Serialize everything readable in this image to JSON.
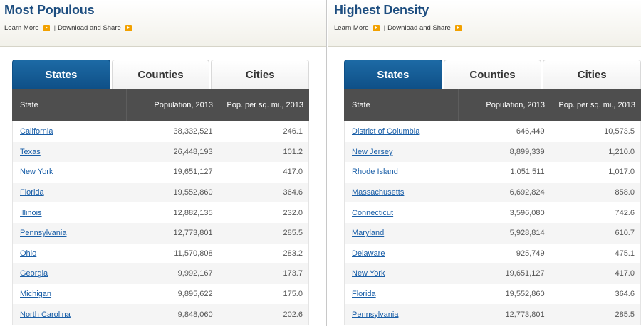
{
  "left": {
    "title": "Most Populous",
    "learn_more": "Learn More",
    "download_share": "Download and Share",
    "separator": "|",
    "tabs": [
      "States",
      "Counties",
      "Cities"
    ],
    "headers": [
      "State",
      "Population, 2013",
      "Pop. per sq. mi., 2013"
    ],
    "rows": [
      [
        "California",
        "38,332,521",
        "246.1"
      ],
      [
        "Texas",
        "26,448,193",
        "101.2"
      ],
      [
        "New York",
        "19,651,127",
        "417.0"
      ],
      [
        "Florida",
        "19,552,860",
        "364.6"
      ],
      [
        "Illinois",
        "12,882,135",
        "232.0"
      ],
      [
        "Pennsylvania",
        "12,773,801",
        "285.5"
      ],
      [
        "Ohio",
        "11,570,808",
        "283.2"
      ],
      [
        "Georgia",
        "9,992,167",
        "173.7"
      ],
      [
        "Michigan",
        "9,895,622",
        "175.0"
      ],
      [
        "North Carolina",
        "9,848,060",
        "202.6"
      ]
    ]
  },
  "right": {
    "title": "Highest Density",
    "learn_more": "Learn More",
    "download_share": "Download and Share",
    "separator": "|",
    "tabs": [
      "States",
      "Counties",
      "Cities"
    ],
    "headers": [
      "State",
      "Population, 2013",
      "Pop. per sq. mi., 2013"
    ],
    "rows": [
      [
        "District of Columbia",
        "646,449",
        "10,573.5"
      ],
      [
        "New Jersey",
        "8,899,339",
        "1,210.0"
      ],
      [
        "Rhode Island",
        "1,051,511",
        "1,017.0"
      ],
      [
        "Massachusetts",
        "6,692,824",
        "858.0"
      ],
      [
        "Connecticut",
        "3,596,080",
        "742.6"
      ],
      [
        "Maryland",
        "5,928,814",
        "610.7"
      ],
      [
        "Delaware",
        "925,749",
        "475.1"
      ],
      [
        "New York",
        "19,651,127",
        "417.0"
      ],
      [
        "Florida",
        "19,552,860",
        "364.6"
      ],
      [
        "Pennsylvania",
        "12,773,801",
        "285.5"
      ]
    ]
  },
  "colors": {
    "title": "#1e4e80",
    "active_tab": "#0e4f86",
    "header_bg": "#4e4e4e",
    "link": "#1a5fa8",
    "arrow_icon": "#f2a100"
  },
  "active_tab_index": 0
}
